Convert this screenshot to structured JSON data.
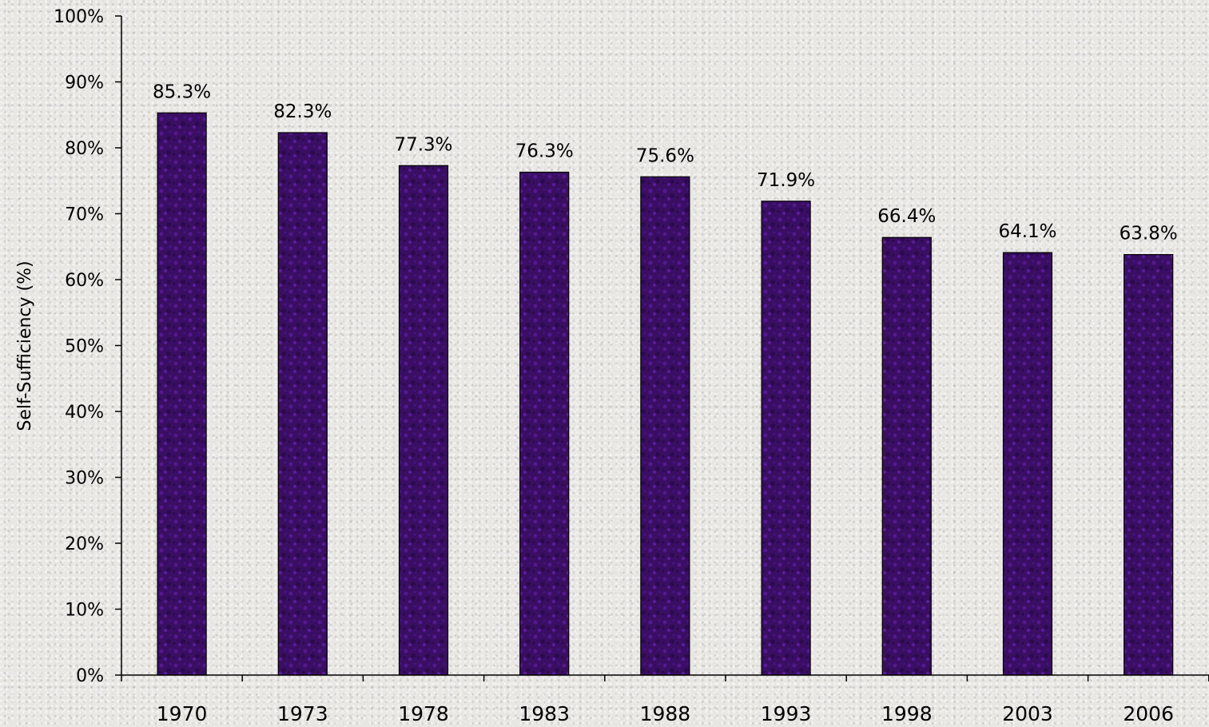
{
  "chart_data": {
    "type": "bar",
    "categories": [
      "1970",
      "1973",
      "1978",
      "1983",
      "1988",
      "1993",
      "1998",
      "2003",
      "2006"
    ],
    "values": [
      85.3,
      82.3,
      77.3,
      76.3,
      75.6,
      71.9,
      66.4,
      64.1,
      63.8
    ],
    "data_labels": [
      "85.3%",
      "82.3%",
      "77.3%",
      "76.3%",
      "75.6%",
      "71.9%",
      "66.4%",
      "64.1%",
      "63.8%"
    ],
    "title": "",
    "xlabel": "",
    "ylabel": "Self-Sufficiency (%)",
    "ylim": [
      0,
      100
    ],
    "y_ticks": [
      "0%",
      "10%",
      "20%",
      "30%",
      "40%",
      "50%",
      "60%",
      "70%",
      "80%",
      "90%",
      "100%"
    ],
    "grid": false,
    "legend": "none",
    "colors": {
      "bar": "#3a0f63",
      "bar_highlight": "#6a1fb3",
      "axis": "#000000"
    }
  }
}
